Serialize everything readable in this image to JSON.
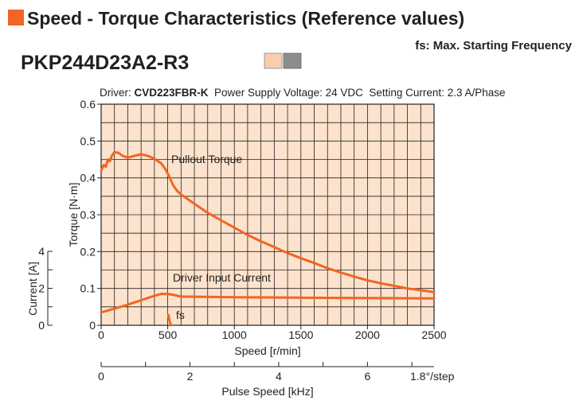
{
  "header": {
    "title": "Speed - Torque Characteristics (Reference values)",
    "note": "fs: Max. Starting Frequency",
    "model": "PKP244D23A2-R3",
    "swatch_colors": [
      "#f8cdb0",
      "#8c8c8c"
    ]
  },
  "conditions": {
    "driver_label": "Driver: ",
    "driver_model": "CVD223FBR-K",
    "rest": "  Power Supply Voltage: 24 VDC  Setting Current: 2.3 A/Phase"
  },
  "colors": {
    "plot_bg": "#fde3cd",
    "curve": "#f26522",
    "text": "#231f20"
  },
  "chart_data": {
    "type": "line",
    "xlabel": "Speed [r/min]",
    "ylabel": "Torque [N·m]",
    "xlim": [
      0,
      2500
    ],
    "ylim": [
      0,
      0.6
    ],
    "grid": true,
    "x_ticks": [
      "0",
      "500",
      "1000",
      "1500",
      "2000",
      "2500"
    ],
    "y_ticks": [
      "0",
      "0.1",
      "0.2",
      "0.3",
      "0.4",
      "0.5",
      "0.6"
    ],
    "current_axis": {
      "label": "Current [A]",
      "range": [
        0,
        4
      ],
      "ticks": [
        "0",
        "2",
        "4"
      ]
    },
    "pulse_axis": {
      "label": "Pulse Speed [kHz]",
      "range": [
        0,
        7.5
      ],
      "ticks": [
        "0",
        "2",
        "4",
        "6"
      ],
      "step_note": "1.8°/step"
    },
    "series": [
      {
        "name": "Pullout Torque",
        "points": [
          [
            0,
            0.42
          ],
          [
            20,
            0.435
          ],
          [
            35,
            0.43
          ],
          [
            50,
            0.45
          ],
          [
            65,
            0.445
          ],
          [
            80,
            0.46
          ],
          [
            100,
            0.47
          ],
          [
            130,
            0.468
          ],
          [
            160,
            0.46
          ],
          [
            200,
            0.455
          ],
          [
            250,
            0.46
          ],
          [
            300,
            0.464
          ],
          [
            350,
            0.46
          ],
          [
            400,
            0.452
          ],
          [
            450,
            0.44
          ],
          [
            480,
            0.425
          ],
          [
            510,
            0.405
          ],
          [
            540,
            0.38
          ],
          [
            570,
            0.365
          ],
          [
            600,
            0.355
          ],
          [
            700,
            0.33
          ],
          [
            800,
            0.305
          ],
          [
            900,
            0.285
          ],
          [
            1000,
            0.265
          ],
          [
            1100,
            0.245
          ],
          [
            1200,
            0.228
          ],
          [
            1300,
            0.212
          ],
          [
            1400,
            0.196
          ],
          [
            1500,
            0.182
          ],
          [
            1600,
            0.169
          ],
          [
            1700,
            0.155
          ],
          [
            1800,
            0.143
          ],
          [
            1900,
            0.132
          ],
          [
            2000,
            0.122
          ],
          [
            2100,
            0.114
          ],
          [
            2200,
            0.107
          ],
          [
            2300,
            0.1
          ],
          [
            2400,
            0.095
          ],
          [
            2500,
            0.09
          ]
        ]
      },
      {
        "name": "Driver Input Current",
        "points": [
          [
            0,
            0.035
          ],
          [
            100,
            0.045
          ],
          [
            200,
            0.056
          ],
          [
            300,
            0.068
          ],
          [
            400,
            0.08
          ],
          [
            450,
            0.085
          ],
          [
            500,
            0.085
          ],
          [
            550,
            0.082
          ],
          [
            600,
            0.078
          ],
          [
            800,
            0.077
          ],
          [
            1000,
            0.076
          ],
          [
            1500,
            0.075
          ],
          [
            2000,
            0.074
          ],
          [
            2500,
            0.073
          ]
        ]
      },
      {
        "name": "fs",
        "points": [
          [
            505,
            0.028
          ],
          [
            515,
            0.01
          ],
          [
            525,
            0.0
          ]
        ]
      }
    ]
  }
}
